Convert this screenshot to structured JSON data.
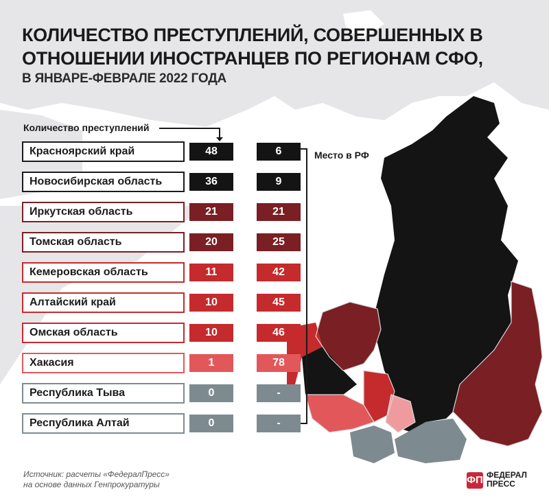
{
  "header": {
    "title": "КОЛИЧЕСТВО ПРЕСТУПЛЕНИЙ, СОВЕРШЕННЫХ В ОТНОШЕНИИ ИНОСТРАНЦЕВ ПО РЕГИОНАМ СФО,",
    "subtitle": "В ЯНВАРЕ-ФЕВРАЛЕ 2022 ГОДА"
  },
  "labels": {
    "count": "Количество преступлений",
    "rank": "Место в РФ"
  },
  "chart_data": {
    "type": "table",
    "title": "КОЛИЧЕСТВО ПРЕСТУПЛЕНИЙ, СОВЕРШЕННЫХ В ОТНОШЕНИИ ИНОСТРАНЦЕВ ПО РЕГИОНАМ СФО,",
    "subtitle": "В ЯНВАРЕ-ФЕВРАЛЕ 2022 ГОДА",
    "columns": [
      "Количество преступлений",
      "Место в РФ"
    ],
    "rows": [
      {
        "region": "Красноярский край",
        "count": "48",
        "rank": "6",
        "color": "#141414",
        "border": "#1a1a1a"
      },
      {
        "region": "Новосибирская область",
        "count": "36",
        "rank": "9",
        "color": "#141414",
        "border": "#1a1a1a"
      },
      {
        "region": "Иркутская область",
        "count": "21",
        "rank": "21",
        "color": "#7a1f24",
        "border": "#7a1f24"
      },
      {
        "region": "Томская область",
        "count": "20",
        "rank": "25",
        "color": "#7a1f24",
        "border": "#7a1f24"
      },
      {
        "region": "Кемеровская область",
        "count": "11",
        "rank": "42",
        "color": "#c52a2d",
        "border": "#c52a2d"
      },
      {
        "region": "Алтайский край",
        "count": "10",
        "rank": "45",
        "color": "#c52a2d",
        "border": "#c52a2d"
      },
      {
        "region": "Омская область",
        "count": "10",
        "rank": "46",
        "color": "#c52a2d",
        "border": "#c52a2d"
      },
      {
        "region": "Хакасия",
        "count": "1",
        "rank": "78",
        "color": "#e2575a",
        "border": "#e2575a"
      },
      {
        "region": "Республика Тыва",
        "count": "0",
        "rank": "-",
        "color": "#7d8b91",
        "border": "#7d8b91"
      },
      {
        "region": "Республика Алтай",
        "count": "0",
        "rank": "-",
        "color": "#7d8b91",
        "border": "#7d8b91"
      }
    ]
  },
  "map_colors": {
    "land": "#ffffff",
    "black": "#141414",
    "dark_red": "#7a1f24",
    "red": "#c52a2d",
    "light_red": "#e2575a",
    "pink": "#ef9a9c",
    "gray": "#7d8b91"
  },
  "footer": {
    "source_line1": "Источник: расчеты «ФедералПресс»",
    "source_line2": "на основе данных Генпрокуратуры",
    "logo_line1": "ФЕДЕРАЛ",
    "logo_line2": "ПРЕСС",
    "logo_mark": "ФП"
  }
}
